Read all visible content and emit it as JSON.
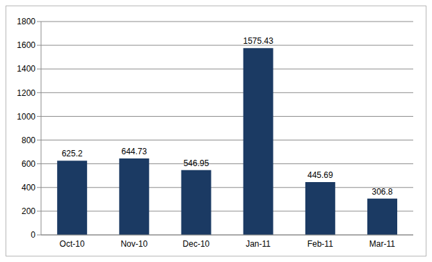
{
  "chart_data": {
    "type": "bar",
    "categories": [
      "Oct-10",
      "Nov-10",
      "Dec-10",
      "Jan-11",
      "Feb-11",
      "Mar-11"
    ],
    "values": [
      625.2,
      644.73,
      546.95,
      1575.43,
      445.69,
      306.8
    ],
    "color": "#1b3a63",
    "ylim": [
      0,
      1800
    ],
    "yticks": [
      0,
      200,
      400,
      600,
      800,
      1000,
      1200,
      1400,
      1600,
      1800
    ],
    "grid": true,
    "data_labels": true
  }
}
